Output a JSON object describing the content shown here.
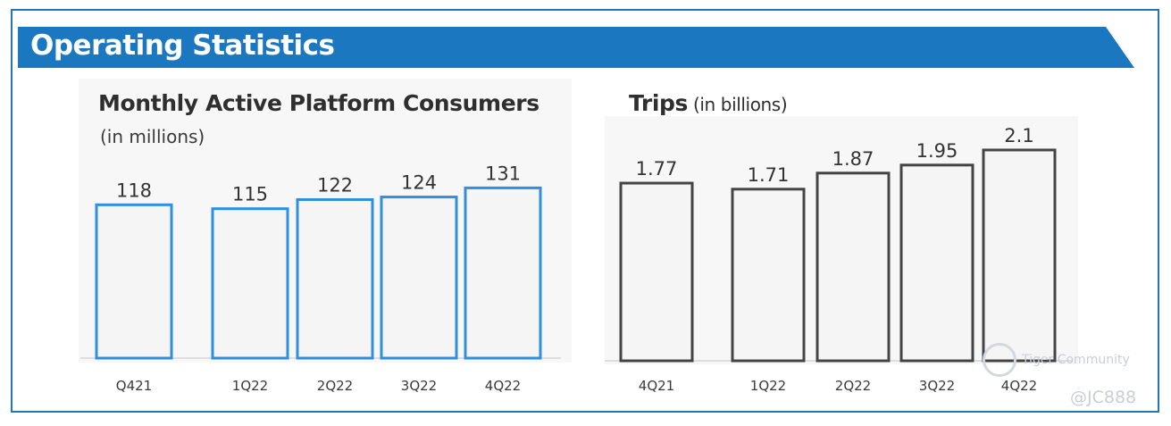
{
  "header": {
    "title": "Operating Statistics"
  },
  "colors": {
    "banner": "#1b78c0",
    "frame": "#1f78b4",
    "consumer_bar": "#2f8fe0",
    "trips_bar": "#444444",
    "bar_fill": "#f5f5f5"
  },
  "panels": {
    "consumers": {
      "title": "Monthly Active Platform Consumers",
      "subtitle": "(in millions)"
    },
    "trips": {
      "title": "Trips",
      "subtitle": "(in billions)"
    }
  },
  "watermark": {
    "brand": "Tiger Community",
    "handle": "@JC888"
  },
  "chart_data": [
    {
      "type": "bar",
      "title": "Monthly Active Platform Consumers",
      "subtitle": "(in millions)",
      "categories": [
        "Q421",
        "1Q22",
        "2Q22",
        "3Q22",
        "4Q22"
      ],
      "values": [
        118,
        115,
        122,
        124,
        131
      ],
      "labels": [
        "118",
        "115",
        "122",
        "124",
        "131"
      ],
      "ylabel": "",
      "xlabel": "",
      "grid": false
    },
    {
      "type": "bar",
      "title": "Trips",
      "subtitle": "(in billions)",
      "categories": [
        "4Q21",
        "1Q22",
        "2Q22",
        "3Q22",
        "4Q22"
      ],
      "values": [
        1.77,
        1.71,
        1.87,
        1.95,
        2.1
      ],
      "labels": [
        "1.77",
        "1.71",
        "1.87",
        "1.95",
        "2.1"
      ],
      "ylabel": "",
      "xlabel": "",
      "grid": false
    }
  ]
}
